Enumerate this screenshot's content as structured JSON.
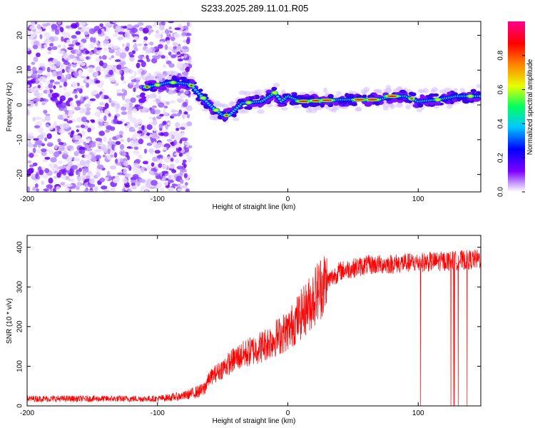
{
  "title": "S233.2025.289.11.01.R05",
  "chart_data": [
    {
      "type": "heatmap",
      "xlabel": "Height of straight line (km)",
      "ylabel": "Frequency (Hz)",
      "xlim": [
        -200,
        148
      ],
      "ylim": [
        -25,
        24
      ],
      "xticks": [
        -200,
        -100,
        0,
        100
      ],
      "yticks": [
        -20,
        -10,
        0,
        10,
        20
      ],
      "colorbar": {
        "label": "Normalized spectral amplitude",
        "range": [
          0,
          1
        ],
        "ticks": [
          0.0,
          0.2,
          0.4,
          0.6,
          0.8
        ],
        "colors": [
          "#ffffff",
          "#8000ff",
          "#0000ff",
          "#00c8ff",
          "#00ff60",
          "#e8ff00",
          "#ff8000",
          "#ff0000",
          "#ff0090"
        ]
      },
      "ridge": [
        {
          "x": -110,
          "y": 5
        },
        {
          "x": -90,
          "y": 6.5
        },
        {
          "x": -75,
          "y": 6
        },
        {
          "x": -70,
          "y": 4
        },
        {
          "x": -60,
          "y": 0
        },
        {
          "x": -50,
          "y": -3
        },
        {
          "x": -45,
          "y": -3
        },
        {
          "x": -35,
          "y": 0.5
        },
        {
          "x": -20,
          "y": 1
        },
        {
          "x": -10,
          "y": 3.5
        },
        {
          "x": -5,
          "y": 1
        },
        {
          "x": 0,
          "y": 2.5
        },
        {
          "x": 10,
          "y": 1
        },
        {
          "x": 40,
          "y": 1.5
        },
        {
          "x": 70,
          "y": 1.5
        },
        {
          "x": 80,
          "y": 2.5
        },
        {
          "x": 90,
          "y": 2.5
        },
        {
          "x": 100,
          "y": 1
        },
        {
          "x": 115,
          "y": 1.5
        },
        {
          "x": 130,
          "y": 2.5
        },
        {
          "x": 148,
          "y": 2.5
        }
      ],
      "noise_x_range": [
        -200,
        -75
      ]
    },
    {
      "type": "line",
      "xlabel": "Height of straight line (km)",
      "ylabel": "SNR (10 * v/v)",
      "xlim": [
        -200,
        148
      ],
      "ylim": [
        0,
        430
      ],
      "xticks": [
        -200,
        -100,
        0,
        100
      ],
      "yticks": [
        0,
        100,
        200,
        300,
        400
      ],
      "series": [
        {
          "name": "SNR",
          "color": "#ff0000",
          "profile": [
            {
              "x": -200,
              "y": 18
            },
            {
              "x": -100,
              "y": 18
            },
            {
              "x": -80,
              "y": 25
            },
            {
              "x": -65,
              "y": 40
            },
            {
              "x": -60,
              "y": 70
            },
            {
              "x": -40,
              "y": 120
            },
            {
              "x": -20,
              "y": 150
            },
            {
              "x": 0,
              "y": 190
            },
            {
              "x": 15,
              "y": 250
            },
            {
              "x": 25,
              "y": 300
            },
            {
              "x": 40,
              "y": 340
            },
            {
              "x": 60,
              "y": 355
            },
            {
              "x": 90,
              "y": 360
            },
            {
              "x": 148,
              "y": 370
            }
          ],
          "dropout_x_range": [
            90,
            148
          ]
        }
      ]
    }
  ]
}
